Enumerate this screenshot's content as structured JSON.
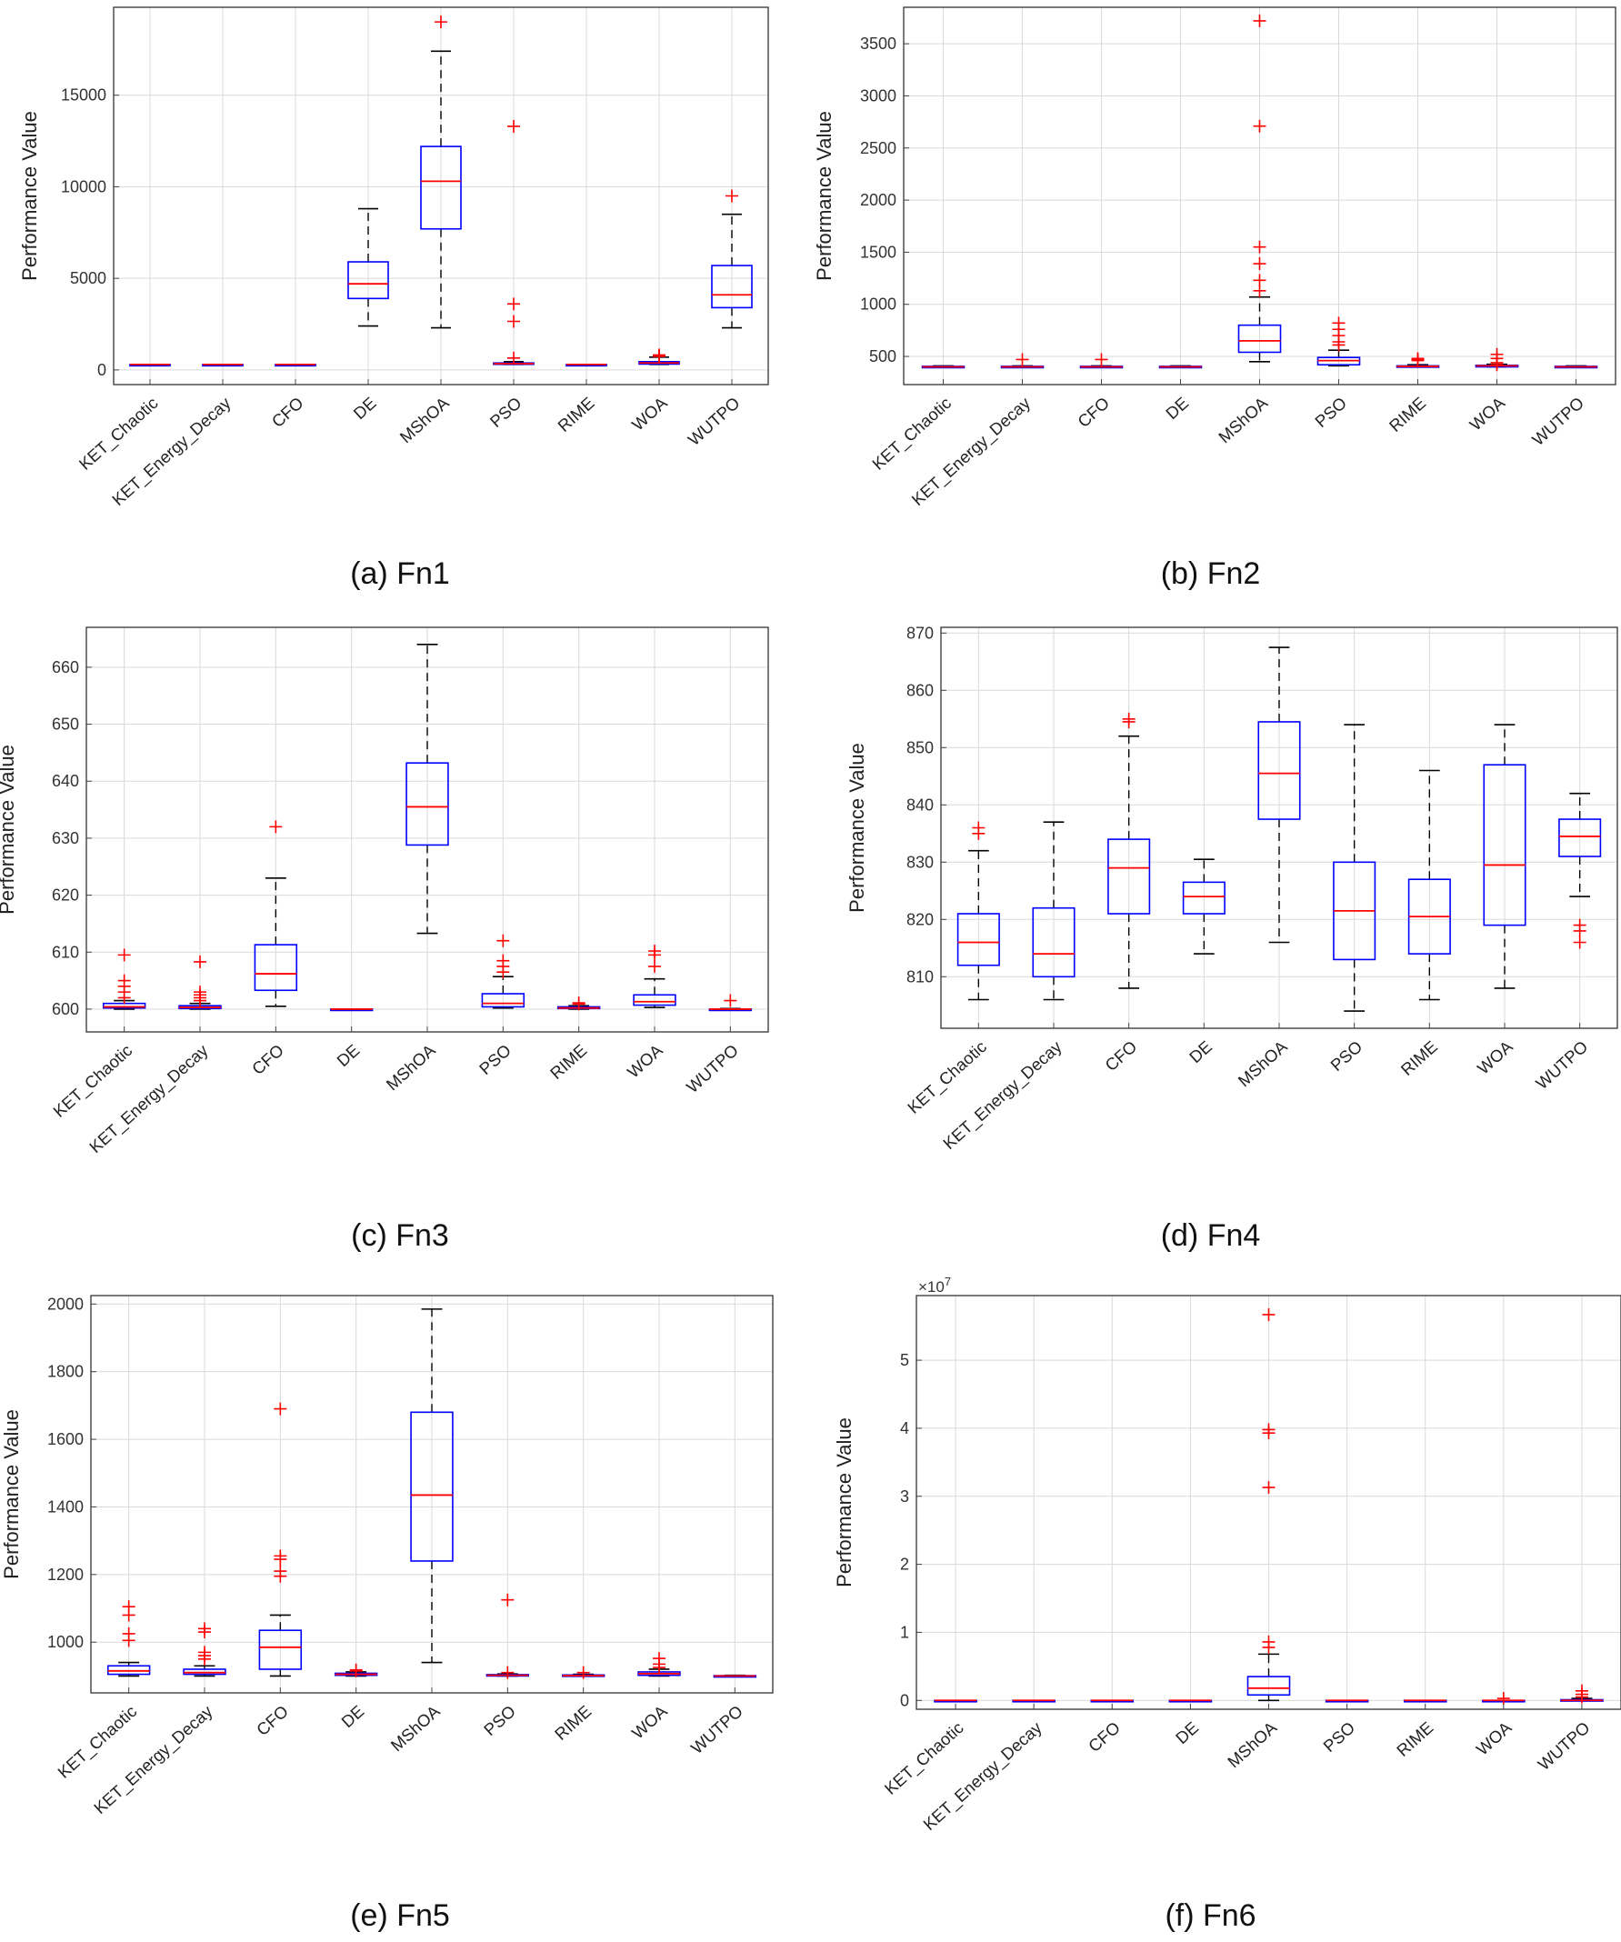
{
  "chart_data": [
    {
      "panel": "a",
      "caption": "(a) Fn1",
      "type": "box",
      "ylabel": "Performance Value",
      "ylim": [
        -800,
        19800
      ],
      "yticks": [
        0,
        5000,
        10000,
        15000
      ],
      "yticklabels": [
        "0",
        "5000",
        "10000",
        "15000"
      ],
      "categories": [
        "KET_Chaotic",
        "KET_Energy_Decay",
        "CFO",
        "DE",
        "MShOA",
        "PSO",
        "RIME",
        "WOA",
        "WUTPO"
      ],
      "boxes": [
        {
          "wl": 300,
          "q1": 300,
          "med": 300,
          "q3": 300,
          "wh": 300,
          "outliers": []
        },
        {
          "wl": 300,
          "q1": 300,
          "med": 300,
          "q3": 300,
          "wh": 300,
          "outliers": []
        },
        {
          "wl": 300,
          "q1": 300,
          "med": 300,
          "q3": 300,
          "wh": 300,
          "outliers": []
        },
        {
          "wl": 2400,
          "q1": 3900,
          "med": 4700,
          "q3": 5900,
          "wh": 8800,
          "outliers": []
        },
        {
          "wl": 2300,
          "q1": 7700,
          "med": 10300,
          "q3": 12200,
          "wh": 17400,
          "outliers": [
            19000
          ]
        },
        {
          "wl": 300,
          "q1": 320,
          "med": 340,
          "q3": 380,
          "wh": 450,
          "outliers": [
            13300,
            3600,
            2650,
            650
          ]
        },
        {
          "wl": 300,
          "q1": 300,
          "med": 300,
          "q3": 300,
          "wh": 300,
          "outliers": []
        },
        {
          "wl": 300,
          "q1": 320,
          "med": 380,
          "q3": 450,
          "wh": 700,
          "outliers": [
            740,
            780,
            820
          ]
        },
        {
          "wl": 2300,
          "q1": 3400,
          "med": 4100,
          "q3": 5700,
          "wh": 8500,
          "outliers": [
            9500
          ]
        }
      ]
    },
    {
      "panel": "b",
      "caption": "(b) Fn2",
      "type": "box",
      "ylabel": "Performance Value",
      "ylim": [
        230,
        3850
      ],
      "yticks": [
        500,
        1000,
        1500,
        2000,
        2500,
        3000,
        3500
      ],
      "yticklabels": [
        "500",
        "1000",
        "1500",
        "2000",
        "2500",
        "3000",
        "3500"
      ],
      "categories": [
        "KET_Chaotic",
        "KET_Energy_Decay",
        "CFO",
        "DE",
        "MShOA",
        "PSO",
        "RIME",
        "WOA",
        "WUTPO"
      ],
      "boxes": [
        {
          "wl": 400,
          "q1": 400,
          "med": 400,
          "q3": 405,
          "wh": 410,
          "outliers": []
        },
        {
          "wl": 400,
          "q1": 400,
          "med": 400,
          "q3": 405,
          "wh": 410,
          "outliers": [
            470
          ]
        },
        {
          "wl": 400,
          "q1": 400,
          "med": 400,
          "q3": 405,
          "wh": 410,
          "outliers": [
            470
          ]
        },
        {
          "wl": 400,
          "q1": 400,
          "med": 400,
          "q3": 405,
          "wh": 410,
          "outliers": []
        },
        {
          "wl": 450,
          "q1": 540,
          "med": 650,
          "q3": 800,
          "wh": 1070,
          "outliers": [
            3720,
            2710,
            1550,
            1390,
            1230,
            1130
          ]
        },
        {
          "wl": 410,
          "q1": 420,
          "med": 460,
          "q3": 490,
          "wh": 560,
          "outliers": [
            820,
            760,
            700,
            640,
            610
          ]
        },
        {
          "wl": 400,
          "q1": 402,
          "med": 405,
          "q3": 410,
          "wh": 420,
          "outliers": [
            460,
            470,
            480
          ]
        },
        {
          "wl": 400,
          "q1": 400,
          "med": 410,
          "q3": 415,
          "wh": 425,
          "outliers": [
            520,
            480,
            440,
            420
          ]
        },
        {
          "wl": 400,
          "q1": 400,
          "med": 400,
          "q3": 405,
          "wh": 410,
          "outliers": []
        }
      ]
    },
    {
      "panel": "c",
      "caption": "(c) Fn3",
      "type": "box",
      "ylabel": "Performance Value",
      "ylim": [
        596,
        667
      ],
      "yticks": [
        600,
        610,
        620,
        630,
        640,
        650,
        660
      ],
      "yticklabels": [
        "600",
        "610",
        "620",
        "630",
        "640",
        "650",
        "660"
      ],
      "categories": [
        "KET_Chaotic",
        "KET_Energy_Decay",
        "CFO",
        "DE",
        "MShOA",
        "PSO",
        "RIME",
        "WOA",
        "WUTPO"
      ],
      "boxes": [
        {
          "wl": 600,
          "q1": 600.2,
          "med": 600.4,
          "q3": 601,
          "wh": 601.5,
          "outliers": [
            609.5,
            605,
            604,
            603,
            602
          ]
        },
        {
          "wl": 600,
          "q1": 600.1,
          "med": 600.3,
          "q3": 600.6,
          "wh": 601,
          "outliers": [
            608.3,
            603,
            602.5,
            602,
            601.5
          ]
        },
        {
          "wl": 600.5,
          "q1": 603.3,
          "med": 606.2,
          "q3": 611.3,
          "wh": 623,
          "outliers": [
            632
          ]
        },
        {
          "wl": 600,
          "q1": 600,
          "med": 600,
          "q3": 600,
          "wh": 600,
          "outliers": []
        },
        {
          "wl": 613.3,
          "q1": 628.8,
          "med": 635.5,
          "q3": 643.2,
          "wh": 664,
          "outliers": []
        },
        {
          "wl": 600.2,
          "q1": 600.4,
          "med": 601,
          "q3": 602.7,
          "wh": 605.7,
          "outliers": [
            612,
            608.5,
            607.5,
            606.5
          ]
        },
        {
          "wl": 600,
          "q1": 600.1,
          "med": 600.2,
          "q3": 600.4,
          "wh": 600.6,
          "outliers": [
            600.9,
            601.1
          ]
        },
        {
          "wl": 600.3,
          "q1": 600.7,
          "med": 601.3,
          "q3": 602.5,
          "wh": 605.3,
          "outliers": [
            610.2,
            609.5,
            607.5
          ]
        },
        {
          "wl": 600,
          "q1": 600,
          "med": 600,
          "q3": 600,
          "wh": 600.1,
          "outliers": [
            601.5
          ]
        }
      ]
    },
    {
      "panel": "d",
      "caption": "(d) Fn4",
      "type": "box",
      "ylabel": "Performance Value",
      "ylim": [
        801,
        871
      ],
      "yticks": [
        810,
        820,
        830,
        840,
        850,
        860,
        870
      ],
      "yticklabels": [
        "810",
        "820",
        "830",
        "840",
        "850",
        "860",
        "870"
      ],
      "categories": [
        "KET_Chaotic",
        "KET_Energy_Decay",
        "CFO",
        "DE",
        "MShOA",
        "PSO",
        "RIME",
        "WOA",
        "WUTPO"
      ],
      "boxes": [
        {
          "wl": 806,
          "q1": 812,
          "med": 816,
          "q3": 821,
          "wh": 832,
          "outliers": [
            836,
            835
          ]
        },
        {
          "wl": 806,
          "q1": 810,
          "med": 814,
          "q3": 822,
          "wh": 837,
          "outliers": []
        },
        {
          "wl": 808,
          "q1": 821,
          "med": 829,
          "q3": 834,
          "wh": 852,
          "outliers": [
            855,
            854.5
          ]
        },
        {
          "wl": 814,
          "q1": 821,
          "med": 824,
          "q3": 826.5,
          "wh": 830.5,
          "outliers": []
        },
        {
          "wl": 816,
          "q1": 837.5,
          "med": 845.5,
          "q3": 854.5,
          "wh": 867.5,
          "outliers": []
        },
        {
          "wl": 804,
          "q1": 813,
          "med": 821.5,
          "q3": 830,
          "wh": 854,
          "outliers": []
        },
        {
          "wl": 806,
          "q1": 814,
          "med": 820.5,
          "q3": 827,
          "wh": 846,
          "outliers": []
        },
        {
          "wl": 808,
          "q1": 819,
          "med": 829.5,
          "q3": 847,
          "wh": 854,
          "outliers": []
        },
        {
          "wl": 824,
          "q1": 831,
          "med": 834.5,
          "q3": 837.5,
          "wh": 842,
          "outliers": [
            819,
            818,
            816
          ]
        }
      ]
    },
    {
      "panel": "e",
      "caption": "(e) Fn5",
      "type": "box",
      "ylabel": "Performance Value",
      "ylim": [
        850,
        2025
      ],
      "yticks": [
        1000,
        1200,
        1400,
        1600,
        1800,
        2000
      ],
      "yticklabels": [
        "1000",
        "1200",
        "1400",
        "1600",
        "1800",
        "2000"
      ],
      "categories": [
        "KET_Chaotic",
        "KET_Energy_Decay",
        "CFO",
        "DE",
        "MShOA",
        "PSO",
        "RIME",
        "WOA",
        "WUTPO"
      ],
      "boxes": [
        {
          "wl": 900,
          "q1": 905,
          "med": 915,
          "q3": 930,
          "wh": 940,
          "outliers": [
            1105,
            1080,
            1025,
            1005
          ]
        },
        {
          "wl": 900,
          "q1": 905,
          "med": 910,
          "q3": 920,
          "wh": 930,
          "outliers": [
            1040,
            1030,
            970,
            960,
            950
          ]
        },
        {
          "wl": 900,
          "q1": 920,
          "med": 985,
          "q3": 1035,
          "wh": 1080,
          "outliers": [
            1690,
            1255,
            1245,
            1210,
            1195
          ]
        },
        {
          "wl": 900,
          "q1": 902,
          "med": 905,
          "q3": 908,
          "wh": 912,
          "outliers": [
            918,
            915
          ]
        },
        {
          "wl": 940,
          "q1": 1240,
          "med": 1435,
          "q3": 1680,
          "wh": 1985,
          "outliers": []
        },
        {
          "wl": 900,
          "q1": 900,
          "med": 902,
          "q3": 904,
          "wh": 906,
          "outliers": [
            1125,
            910
          ]
        },
        {
          "wl": 900,
          "q1": 900,
          "med": 901,
          "q3": 903,
          "wh": 905,
          "outliers": [
            910
          ]
        },
        {
          "wl": 900,
          "q1": 902,
          "med": 907,
          "q3": 912,
          "wh": 920,
          "outliers": [
            952,
            935,
            925
          ]
        },
        {
          "wl": 900,
          "q1": 900,
          "med": 900,
          "q3": 901,
          "wh": 902,
          "outliers": []
        }
      ]
    },
    {
      "panel": "f",
      "caption": "(f) Fn6",
      "type": "box",
      "ylabel": "Performance Value",
      "ylim": [
        -1300000.0,
        59500000.0
      ],
      "yticks": [
        0,
        10000000,
        20000000,
        30000000,
        40000000,
        50000000
      ],
      "yticklabels": [
        "0",
        "1",
        "2",
        "3",
        "4",
        "5"
      ],
      "exponent_label": "×10",
      "exponent_power": "7",
      "categories": [
        "KET_Chaotic",
        "KET_Energy_Decay",
        "CFO",
        "DE",
        "MShOA",
        "PSO",
        "RIME",
        "WOA",
        "WUTPO"
      ],
      "boxes": [
        {
          "wl": 0,
          "q1": 0,
          "med": 0,
          "q3": 0,
          "wh": 0,
          "outliers": []
        },
        {
          "wl": 0,
          "q1": 0,
          "med": 0,
          "q3": 0,
          "wh": 0,
          "outliers": []
        },
        {
          "wl": 0,
          "q1": 0,
          "med": 0,
          "q3": 0,
          "wh": 0,
          "outliers": []
        },
        {
          "wl": 0,
          "q1": 0,
          "med": 0,
          "q3": 0,
          "wh": 0,
          "outliers": []
        },
        {
          "wl": 0,
          "q1": 800000,
          "med": 1800000,
          "q3": 3500000,
          "wh": 6800000,
          "outliers": [
            56700000,
            39800000,
            39300000,
            31300000,
            8600000,
            7800000
          ]
        },
        {
          "wl": 0,
          "q1": 0,
          "med": 0,
          "q3": 0,
          "wh": 0,
          "outliers": []
        },
        {
          "wl": 0,
          "q1": 0,
          "med": 0,
          "q3": 0,
          "wh": 0,
          "outliers": []
        },
        {
          "wl": 0,
          "q1": 0,
          "med": 0,
          "q3": 0,
          "wh": 0,
          "outliers": [
            300000
          ]
        },
        {
          "wl": 0,
          "q1": 0,
          "med": 0,
          "q3": 100000,
          "wh": 300000,
          "outliers": [
            1400000,
            900000,
            500000
          ]
        }
      ]
    }
  ],
  "colors": {
    "box": "#0000ff",
    "median": "#ff0000",
    "outlier": "#ff0000",
    "whisker": "#000000",
    "grid": "#d9d9d9"
  }
}
